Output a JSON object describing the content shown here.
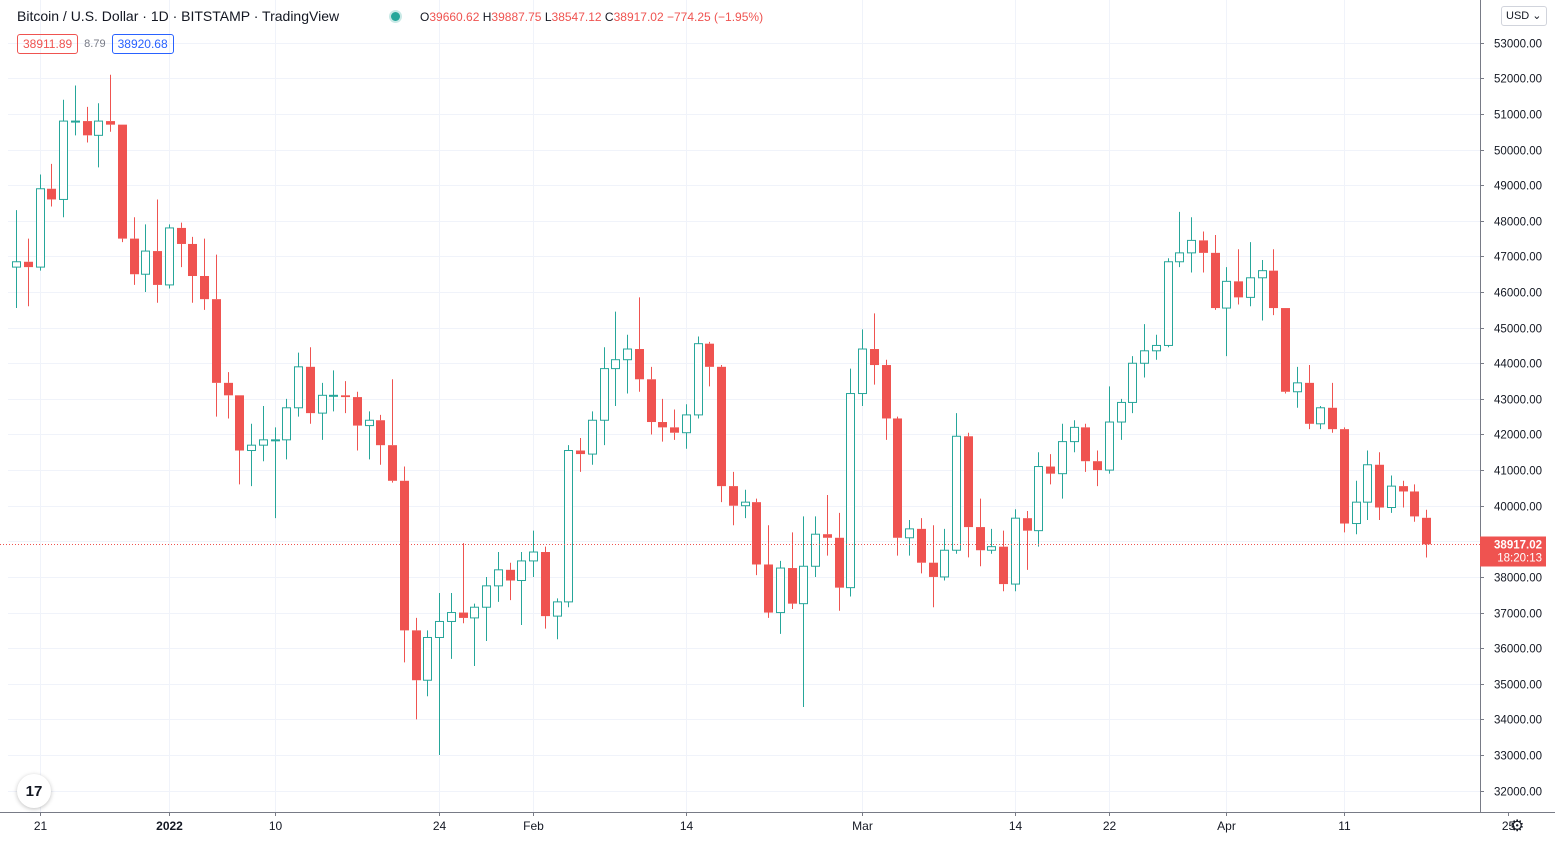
{
  "header": {
    "title": "Bitcoin / U.S. Dollar · 1D · BITSTAMP · TradingView",
    "ohlc": {
      "o_label": "O",
      "o": "39660.62",
      "h_label": "H",
      "h": "39887.75",
      "l_label": "L",
      "l": "38547.12",
      "c_label": "C",
      "c": "38917.02",
      "change": "−774.25 (−1.95%)"
    }
  },
  "quote": {
    "bid": "38911.89",
    "spread": "8.79",
    "ask": "38920.68"
  },
  "currency_label": "USD",
  "last_price": {
    "price": "38917.02",
    "countdown": "18:20:13",
    "value": 38917.02
  },
  "logo_text": "17",
  "gear_icon": "gear-icon",
  "colors": {
    "up": "#26a69a",
    "down": "#ef5350",
    "grid": "#f0f3fa",
    "text": "#131722",
    "last": "#ef5350"
  },
  "chart_data": {
    "type": "candlestick",
    "symbol": "BTCUSD",
    "timeframe": "1D",
    "ylim": [
      31400,
      54200
    ],
    "y_ticks": [
      32000,
      33000,
      34000,
      35000,
      36000,
      37000,
      38000,
      39000,
      40000,
      41000,
      42000,
      43000,
      44000,
      45000,
      46000,
      47000,
      48000,
      49000,
      50000,
      51000,
      52000,
      53000
    ],
    "x_ticks": [
      {
        "label": "21",
        "date": "2021-12-21"
      },
      {
        "label": "2022",
        "date": "2022-01-01"
      },
      {
        "label": "10",
        "date": "2022-01-10"
      },
      {
        "label": "24",
        "date": "2022-01-24"
      },
      {
        "label": "Feb",
        "date": "2022-02-01"
      },
      {
        "label": "14",
        "date": "2022-02-14"
      },
      {
        "label": "Mar",
        "date": "2022-03-01"
      },
      {
        "label": "14",
        "date": "2022-03-14"
      },
      {
        "label": "22",
        "date": "2022-03-22"
      },
      {
        "label": "Apr",
        "date": "2022-04-01"
      },
      {
        "label": "11",
        "date": "2022-04-11"
      },
      {
        "label": "25",
        "date": "2022-04-25"
      }
    ],
    "candles": [
      {
        "d": "2021-12-19",
        "o": 46700,
        "h": 48300,
        "l": 45550,
        "c": 46850
      },
      {
        "d": "2021-12-20",
        "o": 46850,
        "h": 47500,
        "l": 45600,
        "c": 46700
      },
      {
        "d": "2021-12-21",
        "o": 46700,
        "h": 49300,
        "l": 46600,
        "c": 48900
      },
      {
        "d": "2021-12-22",
        "o": 48900,
        "h": 49600,
        "l": 48400,
        "c": 48600
      },
      {
        "d": "2021-12-23",
        "o": 48600,
        "h": 51400,
        "l": 48100,
        "c": 50800
      },
      {
        "d": "2021-12-24",
        "o": 50800,
        "h": 51800,
        "l": 50400,
        "c": 50800
      },
      {
        "d": "2021-12-25",
        "o": 50800,
        "h": 51200,
        "l": 50200,
        "c": 50400
      },
      {
        "d": "2021-12-26",
        "o": 50400,
        "h": 51300,
        "l": 49500,
        "c": 50800
      },
      {
        "d": "2021-12-27",
        "o": 50800,
        "h": 52100,
        "l": 50500,
        "c": 50700
      },
      {
        "d": "2021-12-28",
        "o": 50700,
        "h": 50700,
        "l": 47400,
        "c": 47500
      },
      {
        "d": "2021-12-29",
        "o": 47500,
        "h": 48100,
        "l": 46200,
        "c": 46500
      },
      {
        "d": "2021-12-30",
        "o": 46500,
        "h": 47900,
        "l": 46000,
        "c": 47150
      },
      {
        "d": "2021-12-31",
        "o": 47150,
        "h": 48600,
        "l": 45700,
        "c": 46200
      },
      {
        "d": "2022-01-01",
        "o": 46200,
        "h": 47900,
        "l": 46100,
        "c": 47800
      },
      {
        "d": "2022-01-02",
        "o": 47800,
        "h": 47950,
        "l": 46700,
        "c": 47350
      },
      {
        "d": "2022-01-03",
        "o": 47350,
        "h": 47550,
        "l": 45700,
        "c": 46450
      },
      {
        "d": "2022-01-04",
        "o": 46450,
        "h": 47500,
        "l": 45500,
        "c": 45800
      },
      {
        "d": "2022-01-05",
        "o": 45800,
        "h": 47050,
        "l": 42500,
        "c": 43450
      },
      {
        "d": "2022-01-06",
        "o": 43450,
        "h": 43750,
        "l": 42450,
        "c": 43100
      },
      {
        "d": "2022-01-07",
        "o": 43100,
        "h": 43100,
        "l": 40600,
        "c": 41550
      },
      {
        "d": "2022-01-08",
        "o": 41550,
        "h": 42300,
        "l": 40550,
        "c": 41700
      },
      {
        "d": "2022-01-09",
        "o": 41700,
        "h": 42800,
        "l": 41250,
        "c": 41850
      },
      {
        "d": "2022-01-10",
        "o": 41850,
        "h": 42200,
        "l": 39650,
        "c": 41850
      },
      {
        "d": "2022-01-11",
        "o": 41850,
        "h": 43000,
        "l": 41300,
        "c": 42750
      },
      {
        "d": "2022-01-12",
        "o": 42750,
        "h": 44300,
        "l": 42500,
        "c": 43900
      },
      {
        "d": "2022-01-13",
        "o": 43900,
        "h": 44450,
        "l": 42300,
        "c": 42600
      },
      {
        "d": "2022-01-14",
        "o": 42600,
        "h": 43450,
        "l": 41850,
        "c": 43100
      },
      {
        "d": "2022-01-15",
        "o": 43100,
        "h": 43800,
        "l": 42650,
        "c": 43100
      },
      {
        "d": "2022-01-16",
        "o": 43100,
        "h": 43500,
        "l": 42600,
        "c": 43050
      },
      {
        "d": "2022-01-17",
        "o": 43050,
        "h": 43200,
        "l": 41550,
        "c": 42250
      },
      {
        "d": "2022-01-18",
        "o": 42250,
        "h": 42650,
        "l": 41300,
        "c": 42400
      },
      {
        "d": "2022-01-19",
        "o": 42400,
        "h": 42550,
        "l": 41150,
        "c": 41700
      },
      {
        "d": "2022-01-20",
        "o": 41700,
        "h": 43550,
        "l": 40650,
        "c": 40700
      },
      {
        "d": "2022-01-21",
        "o": 40700,
        "h": 41100,
        "l": 35600,
        "c": 36500
      },
      {
        "d": "2022-01-22",
        "o": 36500,
        "h": 36850,
        "l": 34000,
        "c": 35100
      },
      {
        "d": "2022-01-23",
        "o": 35100,
        "h": 36500,
        "l": 34650,
        "c": 36300
      },
      {
        "d": "2022-01-24",
        "o": 36300,
        "h": 37550,
        "l": 33000,
        "c": 36750
      },
      {
        "d": "2022-01-25",
        "o": 36750,
        "h": 37550,
        "l": 35700,
        "c": 37000
      },
      {
        "d": "2022-01-26",
        "o": 37000,
        "h": 38950,
        "l": 36700,
        "c": 36850
      },
      {
        "d": "2022-01-27",
        "o": 36850,
        "h": 37250,
        "l": 35500,
        "c": 37150
      },
      {
        "d": "2022-01-28",
        "o": 37150,
        "h": 38000,
        "l": 36200,
        "c": 37750
      },
      {
        "d": "2022-01-29",
        "o": 37750,
        "h": 38700,
        "l": 37300,
        "c": 38200
      },
      {
        "d": "2022-01-30",
        "o": 38200,
        "h": 38400,
        "l": 37350,
        "c": 37900
      },
      {
        "d": "2022-01-31",
        "o": 37900,
        "h": 38700,
        "l": 36650,
        "c": 38450
      },
      {
        "d": "2022-02-01",
        "o": 38450,
        "h": 39300,
        "l": 38000,
        "c": 38700
      },
      {
        "d": "2022-02-02",
        "o": 38700,
        "h": 38850,
        "l": 36550,
        "c": 36900
      },
      {
        "d": "2022-02-03",
        "o": 36900,
        "h": 37400,
        "l": 36250,
        "c": 37300
      },
      {
        "d": "2022-02-04",
        "o": 37300,
        "h": 41700,
        "l": 37150,
        "c": 41550
      },
      {
        "d": "2022-02-05",
        "o": 41550,
        "h": 41900,
        "l": 40950,
        "c": 41450
      },
      {
        "d": "2022-02-06",
        "o": 41450,
        "h": 42650,
        "l": 41150,
        "c": 42400
      },
      {
        "d": "2022-02-07",
        "o": 42400,
        "h": 44450,
        "l": 41700,
        "c": 43850
      },
      {
        "d": "2022-02-08",
        "o": 43850,
        "h": 45450,
        "l": 42800,
        "c": 44100
      },
      {
        "d": "2022-02-09",
        "o": 44100,
        "h": 44800,
        "l": 43150,
        "c": 44400
      },
      {
        "d": "2022-02-10",
        "o": 44400,
        "h": 45850,
        "l": 43200,
        "c": 43550
      },
      {
        "d": "2022-02-11",
        "o": 43550,
        "h": 43900,
        "l": 42000,
        "c": 42350
      },
      {
        "d": "2022-02-12",
        "o": 42350,
        "h": 43000,
        "l": 41800,
        "c": 42200
      },
      {
        "d": "2022-02-13",
        "o": 42200,
        "h": 42700,
        "l": 41850,
        "c": 42050
      },
      {
        "d": "2022-02-14",
        "o": 42050,
        "h": 42850,
        "l": 41600,
        "c": 42550
      },
      {
        "d": "2022-02-15",
        "o": 42550,
        "h": 44750,
        "l": 42450,
        "c": 44550
      },
      {
        "d": "2022-02-16",
        "o": 44550,
        "h": 44600,
        "l": 43350,
        "c": 43900
      },
      {
        "d": "2022-02-17",
        "o": 43900,
        "h": 43950,
        "l": 40100,
        "c": 40550
      },
      {
        "d": "2022-02-18",
        "o": 40550,
        "h": 40950,
        "l": 39450,
        "c": 40000
      },
      {
        "d": "2022-02-19",
        "o": 40000,
        "h": 40450,
        "l": 39650,
        "c": 40100
      },
      {
        "d": "2022-02-20",
        "o": 40100,
        "h": 40200,
        "l": 38050,
        "c": 38350
      },
      {
        "d": "2022-02-21",
        "o": 38350,
        "h": 39450,
        "l": 36850,
        "c": 37000
      },
      {
        "d": "2022-02-22",
        "o": 37000,
        "h": 38450,
        "l": 36400,
        "c": 38250
      },
      {
        "d": "2022-02-23",
        "o": 38250,
        "h": 39250,
        "l": 37100,
        "c": 37250
      },
      {
        "d": "2022-02-24",
        "o": 37250,
        "h": 39700,
        "l": 34350,
        "c": 38300
      },
      {
        "d": "2022-02-25",
        "o": 38300,
        "h": 39700,
        "l": 38000,
        "c": 39200
      },
      {
        "d": "2022-02-26",
        "o": 39200,
        "h": 40300,
        "l": 38600,
        "c": 39100
      },
      {
        "d": "2022-02-27",
        "o": 39100,
        "h": 39800,
        "l": 37050,
        "c": 37700
      },
      {
        "d": "2022-02-28",
        "o": 37700,
        "h": 43850,
        "l": 37450,
        "c": 43150
      },
      {
        "d": "2022-03-01",
        "o": 43150,
        "h": 44950,
        "l": 42800,
        "c": 44400
      },
      {
        "d": "2022-03-02",
        "o": 44400,
        "h": 45400,
        "l": 43400,
        "c": 43950
      },
      {
        "d": "2022-03-03",
        "o": 43950,
        "h": 44100,
        "l": 41850,
        "c": 42450
      },
      {
        "d": "2022-03-04",
        "o": 42450,
        "h": 42500,
        "l": 38600,
        "c": 39100
      },
      {
        "d": "2022-03-05",
        "o": 39100,
        "h": 39600,
        "l": 38600,
        "c": 39350
      },
      {
        "d": "2022-03-06",
        "o": 39350,
        "h": 39650,
        "l": 38100,
        "c": 38400
      },
      {
        "d": "2022-03-07",
        "o": 38400,
        "h": 39450,
        "l": 37150,
        "c": 38000
      },
      {
        "d": "2022-03-08",
        "o": 38000,
        "h": 39350,
        "l": 37900,
        "c": 38750
      },
      {
        "d": "2022-03-09",
        "o": 38750,
        "h": 42600,
        "l": 38650,
        "c": 41950
      },
      {
        "d": "2022-03-10",
        "o": 41950,
        "h": 42050,
        "l": 38550,
        "c": 39400
      },
      {
        "d": "2022-03-11",
        "o": 39400,
        "h": 40200,
        "l": 38300,
        "c": 38750
      },
      {
        "d": "2022-03-12",
        "o": 38750,
        "h": 39350,
        "l": 38650,
        "c": 38850
      },
      {
        "d": "2022-03-13",
        "o": 38850,
        "h": 39300,
        "l": 37600,
        "c": 37800
      },
      {
        "d": "2022-03-14",
        "o": 37800,
        "h": 39900,
        "l": 37600,
        "c": 39650
      },
      {
        "d": "2022-03-15",
        "o": 39650,
        "h": 39850,
        "l": 38200,
        "c": 39300
      },
      {
        "d": "2022-03-16",
        "o": 39300,
        "h": 41500,
        "l": 38850,
        "c": 41100
      },
      {
        "d": "2022-03-17",
        "o": 41100,
        "h": 41450,
        "l": 40600,
        "c": 40900
      },
      {
        "d": "2022-03-18",
        "o": 40900,
        "h": 42300,
        "l": 40200,
        "c": 41800
      },
      {
        "d": "2022-03-19",
        "o": 41800,
        "h": 42400,
        "l": 41500,
        "c": 42200
      },
      {
        "d": "2022-03-20",
        "o": 42200,
        "h": 42300,
        "l": 40950,
        "c": 41250
      },
      {
        "d": "2022-03-21",
        "o": 41250,
        "h": 41550,
        "l": 40550,
        "c": 41000
      },
      {
        "d": "2022-03-22",
        "o": 41000,
        "h": 43350,
        "l": 40900,
        "c": 42350
      },
      {
        "d": "2022-03-23",
        "o": 42350,
        "h": 43000,
        "l": 41850,
        "c": 42900
      },
      {
        "d": "2022-03-24",
        "o": 42900,
        "h": 44200,
        "l": 42600,
        "c": 44000
      },
      {
        "d": "2022-03-25",
        "o": 44000,
        "h": 45100,
        "l": 43600,
        "c": 44350
      },
      {
        "d": "2022-03-26",
        "o": 44350,
        "h": 44800,
        "l": 44100,
        "c": 44500
      },
      {
        "d": "2022-03-27",
        "o": 44500,
        "h": 46950,
        "l": 44450,
        "c": 46850
      },
      {
        "d": "2022-03-28",
        "o": 46850,
        "h": 48250,
        "l": 46700,
        "c": 47100
      },
      {
        "d": "2022-03-29",
        "o": 47100,
        "h": 48100,
        "l": 46550,
        "c": 47450
      },
      {
        "d": "2022-03-30",
        "o": 47450,
        "h": 47700,
        "l": 46550,
        "c": 47100
      },
      {
        "d": "2022-03-31",
        "o": 47100,
        "h": 47600,
        "l": 45500,
        "c": 45550
      },
      {
        "d": "2022-04-01",
        "o": 45550,
        "h": 46700,
        "l": 44200,
        "c": 46300
      },
      {
        "d": "2022-04-02",
        "o": 46300,
        "h": 47200,
        "l": 45650,
        "c": 45850
      },
      {
        "d": "2022-04-03",
        "o": 45850,
        "h": 47400,
        "l": 45600,
        "c": 46400
      },
      {
        "d": "2022-04-04",
        "o": 46400,
        "h": 46900,
        "l": 45200,
        "c": 46600
      },
      {
        "d": "2022-04-05",
        "o": 46600,
        "h": 47200,
        "l": 45350,
        "c": 45550
      },
      {
        "d": "2022-04-06",
        "o": 45550,
        "h": 45550,
        "l": 43150,
        "c": 43200
      },
      {
        "d": "2022-04-07",
        "o": 43200,
        "h": 43900,
        "l": 42750,
        "c": 43450
      },
      {
        "d": "2022-04-08",
        "o": 43450,
        "h": 43950,
        "l": 42150,
        "c": 42300
      },
      {
        "d": "2022-04-09",
        "o": 42300,
        "h": 42800,
        "l": 42150,
        "c": 42750
      },
      {
        "d": "2022-04-10",
        "o": 42750,
        "h": 43450,
        "l": 42050,
        "c": 42150
      },
      {
        "d": "2022-04-11",
        "o": 42150,
        "h": 42200,
        "l": 39250,
        "c": 39500
      },
      {
        "d": "2022-04-12",
        "o": 39500,
        "h": 40700,
        "l": 39200,
        "c": 40100
      },
      {
        "d": "2022-04-13",
        "o": 40100,
        "h": 41550,
        "l": 39600,
        "c": 41150
      },
      {
        "d": "2022-04-14",
        "o": 41150,
        "h": 41500,
        "l": 39600,
        "c": 39950
      },
      {
        "d": "2022-04-15",
        "o": 39950,
        "h": 40850,
        "l": 39800,
        "c": 40550
      },
      {
        "d": "2022-04-16",
        "o": 40550,
        "h": 40700,
        "l": 39950,
        "c": 40400
      },
      {
        "d": "2022-04-17",
        "o": 40400,
        "h": 40600,
        "l": 39550,
        "c": 39700
      },
      {
        "d": "2022-04-18",
        "o": 39660.62,
        "h": 39887.75,
        "l": 38547.12,
        "c": 38917.02
      }
    ]
  }
}
